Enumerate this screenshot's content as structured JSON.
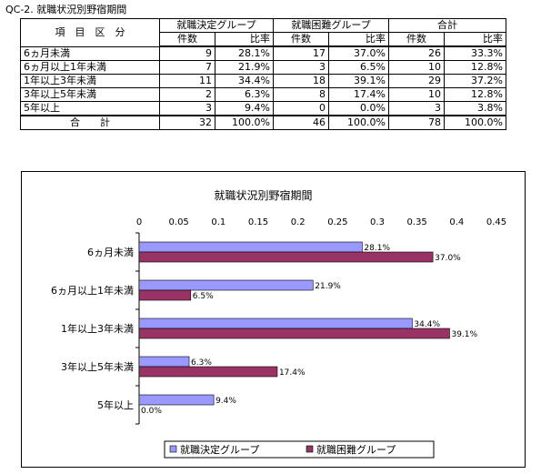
{
  "document": {
    "title": "QC-2. 就職状況別野宿期間"
  },
  "table": {
    "item_header": "項　目　区　分",
    "group_headers": [
      "就職決定グループ",
      "就職困難グループ",
      "合計"
    ],
    "sub_headers": [
      "件数",
      "比率",
      "件数",
      "比率",
      "件数",
      "比率"
    ],
    "rows": [
      {
        "label": "6ヵ月未満",
        "cells": [
          "9",
          "28.1%",
          "17",
          "37.0%",
          "26",
          "33.3%"
        ]
      },
      {
        "label": "6ヵ月以上1年未満",
        "cells": [
          "7",
          "21.9%",
          "3",
          "6.5%",
          "10",
          "12.8%"
        ]
      },
      {
        "label": "1年以上3年未満",
        "cells": [
          "11",
          "34.4%",
          "18",
          "39.1%",
          "29",
          "37.2%"
        ]
      },
      {
        "label": "3年以上5年未満",
        "cells": [
          "2",
          "6.3%",
          "8",
          "17.4%",
          "10",
          "12.8%"
        ]
      },
      {
        "label": "5年以上",
        "cells": [
          "3",
          "9.4%",
          "0",
          "0.0%",
          "3",
          "3.8%"
        ]
      }
    ],
    "total": {
      "label": "合　　計",
      "cells": [
        "32",
        "100.0%",
        "46",
        "100.0%",
        "78",
        "100.0%"
      ]
    }
  },
  "chart_data": {
    "type": "bar",
    "orientation": "horizontal",
    "title": "就職状況別野宿期間",
    "categories": [
      "6ヵ月未満",
      "6ヵ月以上1年未満",
      "1年以上3年未満",
      "3年以上5年未満",
      "5年以上"
    ],
    "series": [
      {
        "name": "就職決定グループ",
        "color": "#9999ff",
        "values": [
          0.281,
          0.219,
          0.344,
          0.063,
          0.094
        ],
        "labels": [
          "28.1%",
          "21.9%",
          "34.4%",
          "6.3%",
          "9.4%"
        ]
      },
      {
        "name": "就職困難グループ",
        "color": "#993366",
        "values": [
          0.37,
          0.065,
          0.391,
          0.174,
          0.0
        ],
        "labels": [
          "37.0%",
          "6.5%",
          "39.1%",
          "17.4%",
          "0.0%"
        ]
      }
    ],
    "xlim": [
      0,
      0.45
    ],
    "xticks": [
      "0",
      "0.05",
      "0.1",
      "0.15",
      "0.2",
      "0.25",
      "0.3",
      "0.35",
      "0.4",
      "0.45"
    ],
    "grid": false,
    "legend_position": "bottom"
  }
}
